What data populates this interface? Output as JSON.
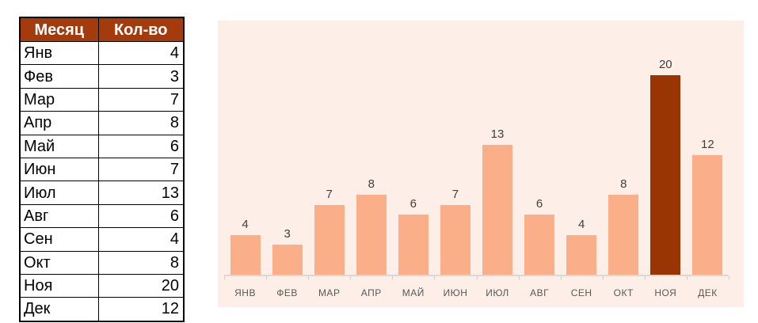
{
  "table": {
    "headers": [
      "Месяц",
      "Кол-во"
    ],
    "rows": [
      {
        "month": "Янв",
        "count": 4
      },
      {
        "month": "Фев",
        "count": 3
      },
      {
        "month": "Мар",
        "count": 7
      },
      {
        "month": "Апр",
        "count": 8
      },
      {
        "month": "Май",
        "count": 6
      },
      {
        "month": "Июн",
        "count": 7
      },
      {
        "month": "Июл",
        "count": 13
      },
      {
        "month": "Авг",
        "count": 6
      },
      {
        "month": "Сен",
        "count": 4
      },
      {
        "month": "Окт",
        "count": 8
      },
      {
        "month": "Ноя",
        "count": 20
      },
      {
        "month": "Дек",
        "count": 12
      }
    ]
  },
  "chart_data": {
    "type": "bar",
    "title": "",
    "categories": [
      "ЯНВ",
      "ФЕВ",
      "МАР",
      "АПР",
      "МАЙ",
      "ИЮН",
      "ИЮЛ",
      "АВГ",
      "СЕН",
      "ОКТ",
      "НОЯ",
      "ДЕК"
    ],
    "values": [
      4,
      3,
      7,
      8,
      6,
      7,
      13,
      6,
      4,
      8,
      20,
      12
    ],
    "highlight_index": 10,
    "highlight_category": "НОЯ",
    "data_labels_shown": true,
    "xlabel": "",
    "ylabel": "",
    "ylim": [
      0,
      20
    ],
    "gridlines": false,
    "legend": "none",
    "colors": {
      "bar": "#FBAF88",
      "highlight_bar": "#993502",
      "plot_background": "#FDEEE7",
      "axis_line": "#DBD7D4",
      "tick": "#CFCBC8",
      "category_label": "#595959",
      "value_label": "#404040"
    }
  },
  "colors": {
    "page_background": "#FFFFFF",
    "table_header_bg": "#A33B0D",
    "table_header_text": "#FFFFFF",
    "table_border": "#000000",
    "table_text": "#000000"
  }
}
